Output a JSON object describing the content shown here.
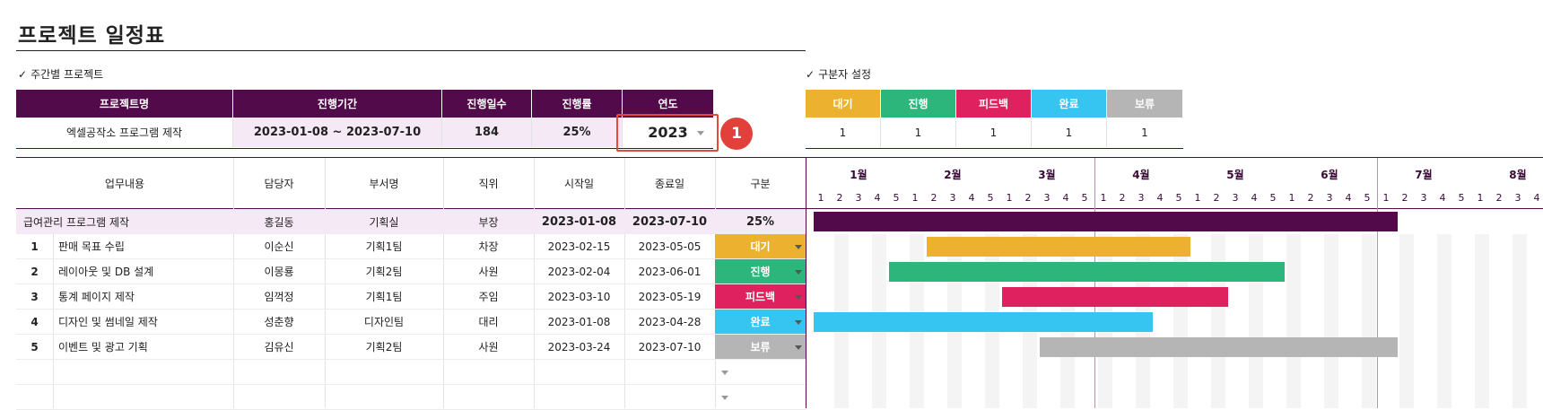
{
  "title": "프로젝트 일정표",
  "weekly_section": {
    "label": "주간별 프로젝트",
    "check": "✓"
  },
  "legend_section": {
    "label": "구분자 설정",
    "check": "✓"
  },
  "project_header": [
    "프로젝트명",
    "진행기간",
    "진행일수",
    "진행률",
    "연도"
  ],
  "project_row": {
    "name": "엑셀공작소 프로그램 제작",
    "period": "2023-01-08 ~ 2023-07-10",
    "days": "184",
    "progress": "25%",
    "year": "2023"
  },
  "callout": "1",
  "legend": {
    "items": [
      {
        "label": "대기",
        "color": "#ebb12f",
        "count": "1"
      },
      {
        "label": "진행",
        "color": "#2db67c",
        "count": "1"
      },
      {
        "label": "피드백",
        "color": "#e0215f",
        "count": "1"
      },
      {
        "label": "완료",
        "color": "#36c5f0",
        "count": "1"
      },
      {
        "label": "보류",
        "color": "#b5b5b5",
        "count": "1"
      }
    ]
  },
  "task_header": [
    "업무내용",
    "담당자",
    "부서명",
    "직위",
    "시작일",
    "종료일",
    "구분"
  ],
  "summary_row": {
    "task": "급여관리 프로그램 제작",
    "owner": "홍길동",
    "dept": "기획실",
    "rank": "부장",
    "start": "2023-01-08",
    "end": "2023-07-10",
    "status": "25%"
  },
  "tasks": [
    {
      "no": "1",
      "task": "판매 목표 수립",
      "owner": "이순신",
      "dept": "기획1팀",
      "rank": "차장",
      "start": "2023-02-15",
      "end": "2023-05-05",
      "status": "대기",
      "color": "#ebb12f"
    },
    {
      "no": "2",
      "task": "레이아웃 및 DB 설계",
      "owner": "이몽룡",
      "dept": "기획2팀",
      "rank": "사원",
      "start": "2023-02-04",
      "end": "2023-06-01",
      "status": "진행",
      "color": "#2db67c"
    },
    {
      "no": "3",
      "task": "통계 페이지 제작",
      "owner": "임꺽정",
      "dept": "기획1팀",
      "rank": "주임",
      "start": "2023-03-10",
      "end": "2023-05-19",
      "status": "피드백",
      "color": "#e0215f"
    },
    {
      "no": "4",
      "task": "디자인 및 썸네일 제작",
      "owner": "성춘향",
      "dept": "디자인팀",
      "rank": "대리",
      "start": "2023-01-08",
      "end": "2023-04-28",
      "status": "완료",
      "color": "#36c5f0"
    },
    {
      "no": "5",
      "task": "이벤트 및 광고 기획",
      "owner": "김유신",
      "dept": "기획2팀",
      "rank": "사원",
      "start": "2023-03-24",
      "end": "2023-07-10",
      "status": "보류",
      "color": "#b5b5b5"
    }
  ],
  "gantt": {
    "months": [
      "1월",
      "2월",
      "3월",
      "4월",
      "5월",
      "6월",
      "7월",
      "8월"
    ],
    "weeks": [
      "1",
      "2",
      "3",
      "4",
      "5",
      "1",
      "2",
      "3",
      "4",
      "5",
      "1",
      "2",
      "3",
      "4",
      "5",
      "1",
      "2",
      "3",
      "4",
      "5",
      "1",
      "2",
      "3",
      "4",
      "5",
      "1",
      "2",
      "3",
      "4",
      "5",
      "1",
      "2",
      "3",
      "4",
      "5",
      "1",
      "2",
      "3",
      "4"
    ],
    "summary_color": "#520a4a",
    "summary_span_weeks": [
      1,
      31
    ],
    "task_spans_weeks": [
      [
        7,
        20
      ],
      [
        5,
        25
      ],
      [
        11,
        22
      ],
      [
        1,
        18
      ],
      [
        13,
        31
      ]
    ]
  }
}
